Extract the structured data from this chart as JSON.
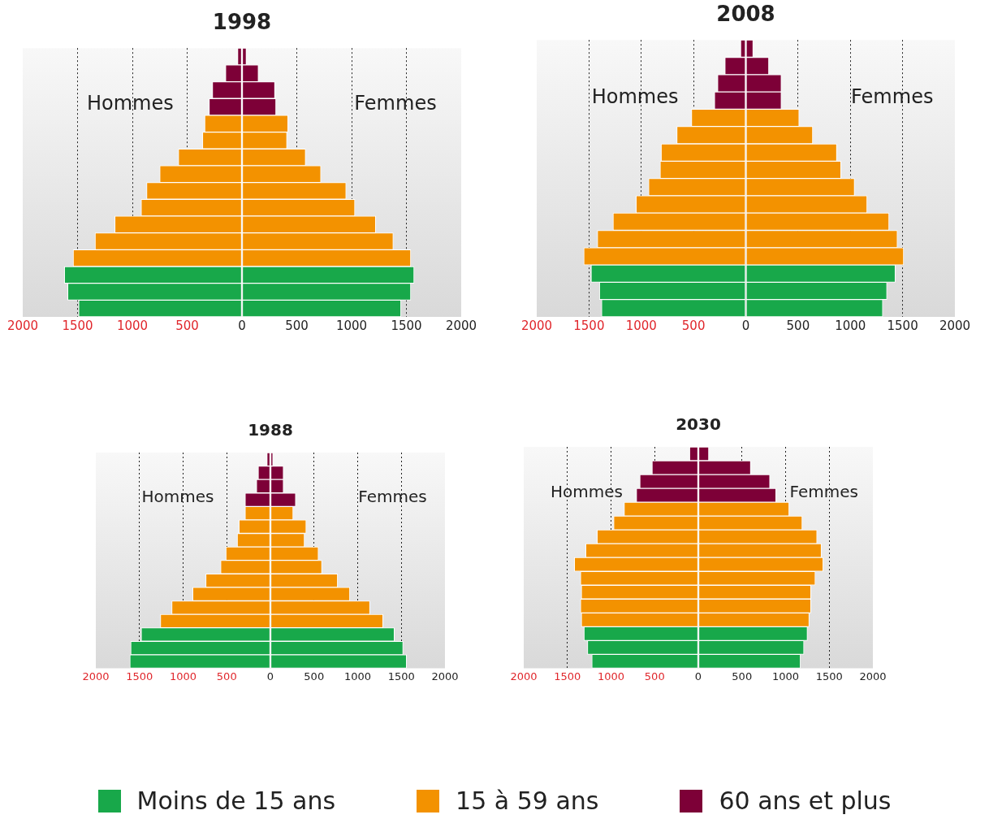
{
  "chart_data": [
    {
      "type": "bar",
      "title": "1998",
      "orientation": "horizontal",
      "stacked": true,
      "categories": [
        null,
        null,
        null,
        null,
        null,
        null,
        null,
        null,
        null,
        null,
        null,
        null,
        null,
        null,
        null,
        null
      ],
      "xlim": [
        -2000,
        2000
      ],
      "xticks": [
        {
          "value": -2000,
          "label": "2000"
        },
        {
          "value": -1500,
          "label": "1500"
        },
        {
          "value": -1000,
          "label": "1000"
        },
        {
          "value": -500,
          "label": "500"
        },
        0,
        500,
        1000,
        1500,
        2000
      ],
      "grid": "x",
      "tick_labels": "x",
      "legend": "bottom",
      "annotations": [
        "Hommes",
        "Femmes"
      ],
      "series": [
        {
          "name": "Moins de 15 ans",
          "color": "#18a84a",
          "values": [
            null,
            null,
            null,
            null,
            null,
            null,
            null,
            null,
            null,
            null,
            null,
            null,
            null,
            1570,
            1540,
            1450
          ]
        },
        {
          "color": "#18a84a",
          "values": [
            null,
            null,
            null,
            null,
            null,
            null,
            null,
            null,
            null,
            null,
            null,
            null,
            null,
            -1620,
            -1590,
            -1490
          ]
        },
        {
          "name": "15 à 59 ans",
          "color": "#f39200",
          "values": [
            null,
            null,
            null,
            null,
            420,
            410,
            580,
            720,
            950,
            1030,
            1220,
            1380,
            1540,
            null,
            null,
            null
          ]
        },
        {
          "color": "#f39200",
          "values": [
            null,
            null,
            null,
            null,
            -340,
            -360,
            -580,
            -750,
            -870,
            -920,
            -1160,
            -1340,
            -1540,
            null,
            null,
            null
          ]
        },
        {
          "name": "60 ans et plus",
          "color": "#7d0037",
          "values": [
            40,
            150,
            300,
            310,
            null,
            null,
            null,
            null,
            null,
            null,
            null,
            null,
            null,
            null,
            null,
            null
          ]
        },
        {
          "color": "#7d0037",
          "values": [
            -40,
            -150,
            -270,
            -300,
            null,
            null,
            null,
            null,
            null,
            null,
            null,
            null,
            null,
            null,
            null,
            null
          ]
        }
      ]
    },
    {
      "type": "bar",
      "title": "2008",
      "orientation": "horizontal",
      "stacked": true,
      "categories": [
        null,
        null,
        null,
        null,
        null,
        null,
        null,
        null,
        null,
        null,
        null,
        null,
        null,
        null,
        null,
        null
      ],
      "xlim": [
        -2000,
        2000
      ],
      "xticks": [
        {
          "value": -2000,
          "label": "2000"
        },
        {
          "value": -1500,
          "label": "1500"
        },
        {
          "value": -1000,
          "label": "1000"
        },
        {
          "value": -500,
          "label": "500"
        },
        0,
        500,
        1000,
        1500,
        2000
      ],
      "grid": "x",
      "tick_labels": "x",
      "legend": false,
      "annotations": [
        "Hommes",
        "Femmes"
      ],
      "series": [
        {
          "color": "#18a84a",
          "values": [
            null,
            null,
            null,
            null,
            null,
            null,
            null,
            null,
            null,
            null,
            null,
            null,
            null,
            1430,
            1350,
            1310
          ]
        },
        {
          "color": "#18a84a",
          "values": [
            null,
            null,
            null,
            null,
            null,
            null,
            null,
            null,
            null,
            null,
            null,
            null,
            null,
            -1480,
            -1400,
            -1380
          ]
        },
        {
          "color": "#f39200",
          "values": [
            null,
            null,
            null,
            null,
            510,
            640,
            870,
            910,
            1040,
            1160,
            1370,
            1450,
            1510,
            null,
            null,
            null
          ]
        },
        {
          "color": "#f39200",
          "values": [
            null,
            null,
            null,
            null,
            -520,
            -660,
            -810,
            -820,
            -930,
            -1050,
            -1270,
            -1420,
            -1550,
            null,
            null,
            null
          ]
        },
        {
          "color": "#7d0037",
          "values": [
            70,
            220,
            340,
            340,
            null,
            null,
            null,
            null,
            null,
            null,
            null,
            null,
            null,
            null,
            null,
            null
          ]
        },
        {
          "color": "#7d0037",
          "values": [
            -50,
            -200,
            -270,
            -300,
            null,
            null,
            null,
            null,
            null,
            null,
            null,
            null,
            null,
            null,
            null,
            null
          ]
        }
      ]
    },
    {
      "type": "bar",
      "title": "1988",
      "orientation": "horizontal",
      "stacked": true,
      "categories": [
        null,
        null,
        null,
        null,
        null,
        null,
        null,
        null,
        null,
        null,
        null,
        null,
        null,
        null,
        null,
        null
      ],
      "xlim": [
        -2000,
        2000
      ],
      "xticks": [
        {
          "value": -2000,
          "label": "2000"
        },
        {
          "value": -1500,
          "label": "1500"
        },
        {
          "value": -1000,
          "label": "1000"
        },
        {
          "value": -500,
          "label": "500"
        },
        0,
        500,
        1000,
        1500,
        2000
      ],
      "grid": "x",
      "tick_labels": "x",
      "legend": false,
      "annotations": [
        "Hommes",
        "Femmes"
      ],
      "series": [
        {
          "color": "#18a84a",
          "values": [
            null,
            null,
            null,
            null,
            null,
            null,
            null,
            null,
            null,
            null,
            null,
            null,
            null,
            1420,
            1520,
            1560
          ]
        },
        {
          "color": "#18a84a",
          "values": [
            null,
            null,
            null,
            null,
            null,
            null,
            null,
            null,
            null,
            null,
            null,
            null,
            null,
            -1480,
            -1600,
            -1610
          ]
        },
        {
          "color": "#f39200",
          "values": [
            null,
            null,
            null,
            null,
            260,
            410,
            390,
            550,
            590,
            770,
            910,
            1140,
            1290,
            null,
            null,
            null
          ]
        },
        {
          "color": "#f39200",
          "values": [
            null,
            null,
            null,
            null,
            -290,
            -360,
            -380,
            -510,
            -570,
            -740,
            -890,
            -1130,
            -1260,
            null,
            null,
            null
          ]
        },
        {
          "color": "#7d0037",
          "values": [
            30,
            150,
            150,
            290,
            null,
            null,
            null,
            null,
            null,
            null,
            null,
            null,
            null,
            null,
            null,
            null
          ]
        },
        {
          "color": "#7d0037",
          "values": [
            -40,
            -140,
            -160,
            -290,
            null,
            null,
            null,
            null,
            null,
            null,
            null,
            null,
            null,
            null,
            null,
            null
          ]
        }
      ]
    },
    {
      "type": "bar",
      "title": "2030",
      "orientation": "horizontal",
      "stacked": true,
      "categories": [
        null,
        null,
        null,
        null,
        null,
        null,
        null,
        null,
        null,
        null,
        null,
        null,
        null,
        null,
        null,
        null
      ],
      "xlim": [
        -2000,
        2000
      ],
      "xticks": [
        {
          "value": -2000,
          "label": "2000"
        },
        {
          "value": -1500,
          "label": "1500"
        },
        {
          "value": -1000,
          "label": "1000"
        },
        {
          "value": -500,
          "label": "500"
        },
        0,
        500,
        1000,
        1500,
        2000
      ],
      "grid": "x",
      "tick_labels": "x",
      "legend": false,
      "annotations": [
        "Hommes",
        "Femmes"
      ],
      "series": [
        {
          "color": "#18a84a",
          "values": [
            null,
            null,
            null,
            null,
            null,
            null,
            null,
            null,
            null,
            null,
            null,
            null,
            null,
            1250,
            1210,
            1170
          ]
        },
        {
          "color": "#18a84a",
          "values": [
            null,
            null,
            null,
            null,
            null,
            null,
            null,
            null,
            null,
            null,
            null,
            null,
            null,
            -1310,
            -1270,
            -1220
          ]
        },
        {
          "color": "#f39200",
          "values": [
            null,
            null,
            null,
            null,
            1040,
            1190,
            1360,
            1410,
            1430,
            1340,
            1290,
            1290,
            1270,
            null,
            null,
            null
          ]
        },
        {
          "color": "#f39200",
          "values": [
            null,
            null,
            null,
            null,
            -850,
            -970,
            -1160,
            -1290,
            -1420,
            -1350,
            -1340,
            -1350,
            -1340,
            null,
            null,
            null
          ]
        },
        {
          "color": "#7d0037",
          "values": [
            120,
            600,
            820,
            890,
            null,
            null,
            null,
            null,
            null,
            null,
            null,
            null,
            null,
            null,
            null,
            null
          ]
        },
        {
          "color": "#7d0037",
          "values": [
            -100,
            -530,
            -670,
            -710,
            null,
            null,
            null,
            null,
            null,
            null,
            null,
            null,
            null,
            null,
            null,
            null
          ]
        }
      ]
    }
  ]
}
